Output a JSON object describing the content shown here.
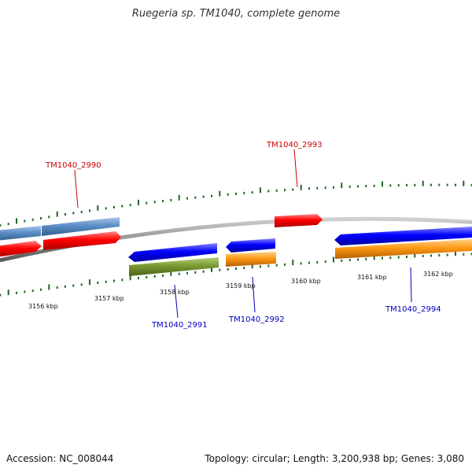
{
  "header": {
    "title": "Ruegeria sp. TM1040, complete genome"
  },
  "footer": {
    "accession": "Accession: NC_008044",
    "summary": "Topology: circular; Length: 3,200,938 bp; Genes: 3,080"
  },
  "scale": {
    "tick_labels": [
      "3156 kbp",
      "3157 kbp",
      "3158 kbp",
      "3159 kbp",
      "3160 kbp",
      "3161 kbp",
      "3162 kbp"
    ]
  },
  "genes": [
    {
      "label": "TM1040_2990",
      "strand": "forward",
      "color": "#cc0000"
    },
    {
      "label": "TM1040_2991",
      "strand": "reverse",
      "color": "#0000bb"
    },
    {
      "label": "TM1040_2992",
      "strand": "reverse",
      "color": "#0000bb"
    },
    {
      "label": "TM1040_2993",
      "strand": "forward",
      "color": "#cc0000"
    },
    {
      "label": "TM1040_2994",
      "strand": "reverse",
      "color": "#0000bb"
    }
  ],
  "colors": {
    "backbone": "#888888",
    "tick": "#226622",
    "forward_gene": "#ee0000",
    "reverse_gene": "#0000ee",
    "forward_cds": "#4f81bd",
    "reverse_cds_a": "#6b8e23",
    "reverse_cds_b": "#ff8c00"
  }
}
